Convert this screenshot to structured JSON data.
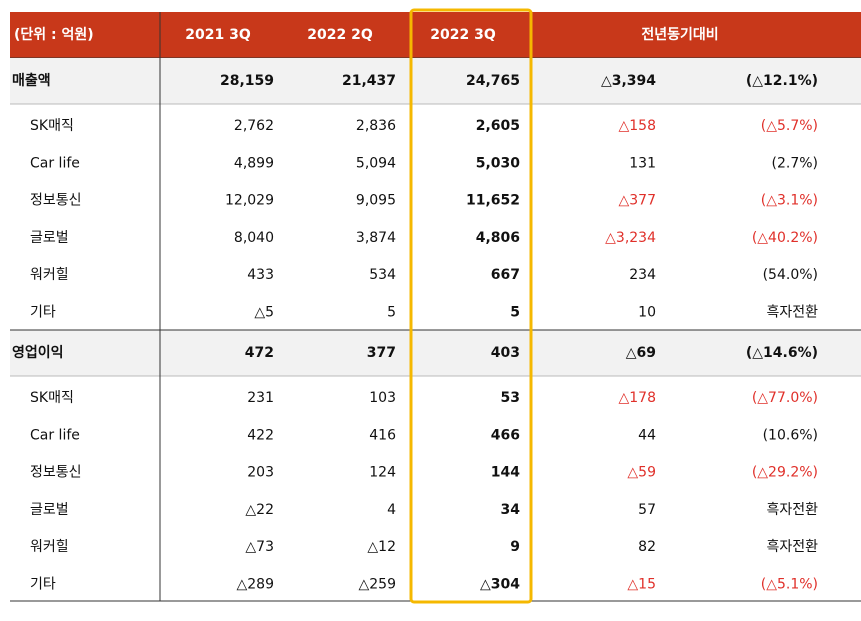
{
  "table": {
    "header": [
      "(단위 : 억원)",
      "2021 3Q",
      "2022 2Q",
      "2022 3Q",
      "전년동기대비"
    ],
    "sections": [
      {
        "total": [
          "매출액",
          "28,159",
          "21,437",
          "24,765",
          "△3,394",
          "(△12.1%)"
        ],
        "rows": [
          [
            "SK매직",
            "2,762",
            "2,836",
            "2,605",
            "△158",
            "(△5.7%)"
          ],
          [
            "Car life",
            "4,899",
            "5,094",
            "5,030",
            "131",
            "(2.7%)"
          ],
          [
            "정보통신",
            "12,029",
            "9,095",
            "11,652",
            "△377",
            "(△3.1%)"
          ],
          [
            "글로벌",
            "8,040",
            "3,874",
            "4,806",
            "△3,234",
            "(△40.2%)"
          ],
          [
            "워커힐",
            "433",
            "534",
            "667",
            "234",
            "(54.0%)"
          ],
          [
            "기타",
            "△5",
            "5",
            "5",
            "10",
            "흑자전환"
          ]
        ]
      },
      {
        "total": [
          "영업이익",
          "472",
          "377",
          "403",
          "△69",
          "(△14.6%)"
        ],
        "rows": [
          [
            "SK매직",
            "231",
            "103",
            "53",
            "△178",
            "(△77.0%)"
          ],
          [
            "Car life",
            "422",
            "416",
            "466",
            "44",
            "(10.6%)"
          ],
          [
            "정보통신",
            "203",
            "124",
            "144",
            "△59",
            "(△29.2%)"
          ],
          [
            "글로벌",
            "△22",
            "4",
            "34",
            "57",
            "흑자전환"
          ],
          [
            "워커힐",
            "△73",
            "△12",
            "9",
            "82",
            "흑자전환"
          ],
          [
            "기타",
            "△289",
            "△259",
            "△304",
            "△15",
            "(△5.1%)"
          ]
        ]
      }
    ]
  }
}
